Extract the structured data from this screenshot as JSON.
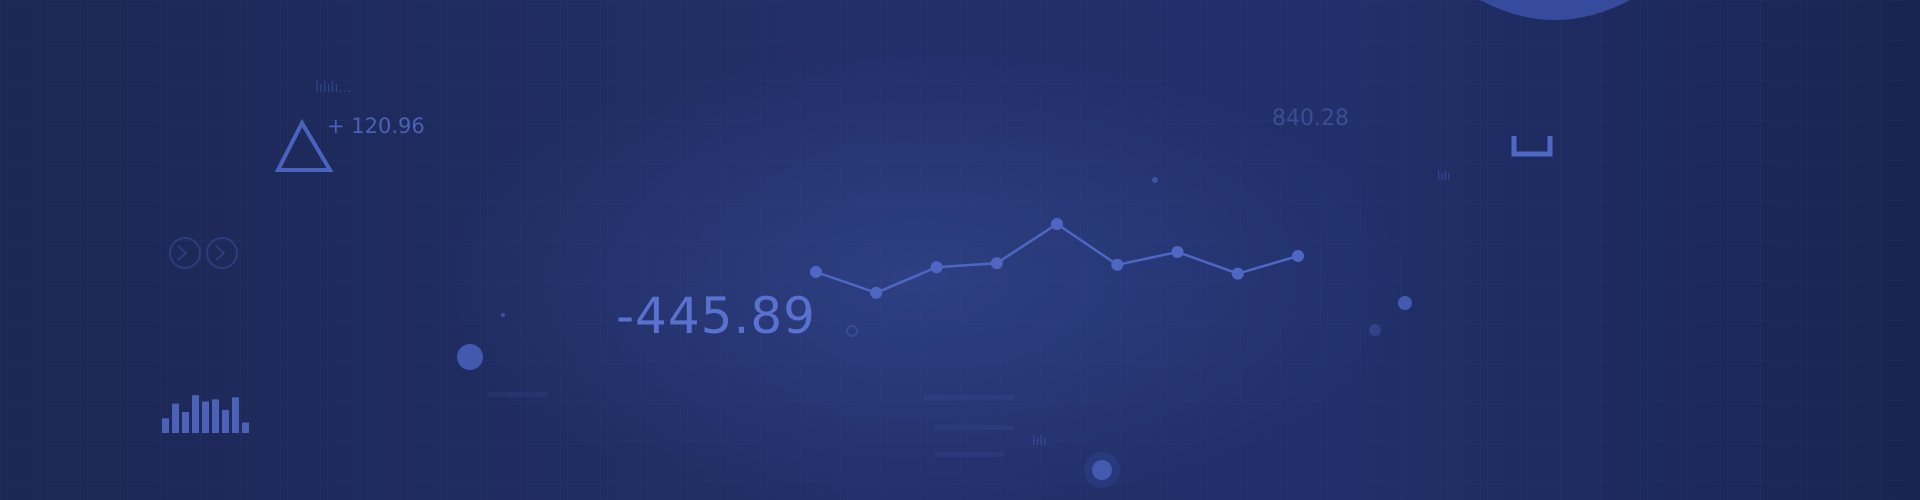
{
  "readouts": {
    "main_value": "-445.89",
    "delta_value": "+ 120.96",
    "corner_value": "840.28"
  },
  "chart_data": {
    "type": "line",
    "series": [
      {
        "values": [
          0.4,
          0.14,
          0.46,
          0.51,
          1.0,
          0.49,
          0.65,
          0.38,
          0.6
        ]
      }
    ],
    "grid": true
  },
  "mini_bars": [
    0.35,
    0.7,
    0.5,
    0.9,
    0.75,
    0.8,
    0.55,
    0.85,
    0.25
  ],
  "colors": {
    "background": "#1f2c5c",
    "accent": "#5a72cf",
    "line": "#4f67c2"
  },
  "icons": {
    "triangle": "triangle-icon",
    "circle-arrows": "circle-arrows-icon",
    "target": "target-icon",
    "dot": "dot-icon"
  }
}
